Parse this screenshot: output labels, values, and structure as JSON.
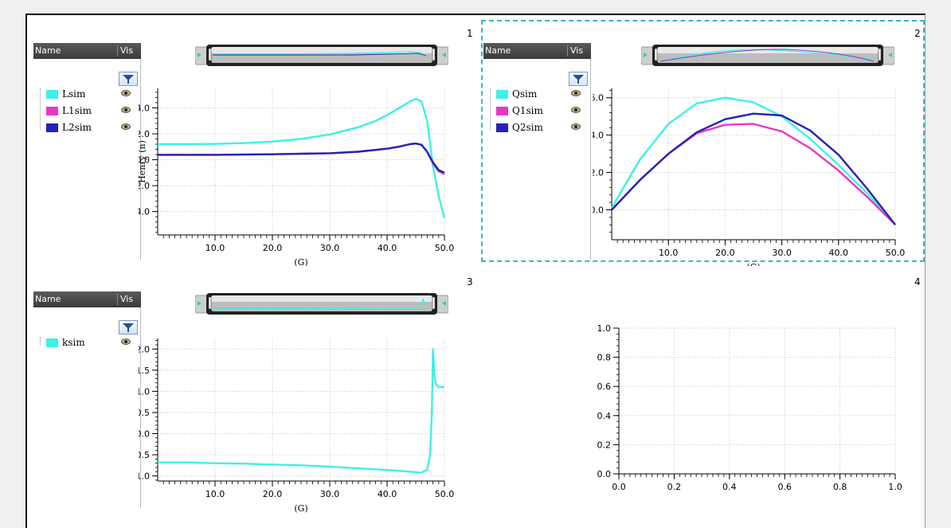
{
  "panels": [
    {
      "number": "1",
      "legend": {
        "header_name": "Name",
        "header_vis": "Vis",
        "items": [
          {
            "label": "Lsim",
            "color": "#3ef0e6"
          },
          {
            "label": "L1sim",
            "color": "#e838c2"
          },
          {
            "label": "L2sim",
            "color": "#2323b8"
          }
        ]
      }
    },
    {
      "number": "2",
      "legend": {
        "header_name": "Name",
        "header_vis": "Vis",
        "items": [
          {
            "label": "Qsim",
            "color": "#3ef0e6"
          },
          {
            "label": "Q1sim",
            "color": "#e838c2"
          },
          {
            "label": "Q2sim",
            "color": "#2323b8"
          }
        ]
      }
    },
    {
      "number": "3",
      "legend": {
        "header_name": "Name",
        "header_vis": "Vis",
        "items": [
          {
            "label": "ksim",
            "color": "#3ef0e6"
          }
        ]
      }
    },
    {
      "number": "4"
    }
  ],
  "chart_data": [
    {
      "type": "line",
      "xlabel": "(G)",
      "ylabel": "Henry (n)",
      "xlim": [
        0,
        50
      ],
      "ylim": [
        -5.8,
        5.5
      ],
      "xticks": [
        10,
        20,
        30,
        40,
        50
      ],
      "xtick_labels": [
        "10.0",
        "20.0",
        "30.0",
        "40.0",
        "50.0"
      ],
      "yticks": [
        -4,
        -2,
        0,
        2,
        4
      ],
      "ytick_labels": [
        "-4.0",
        "-2.0",
        "0.0",
        "2.0",
        "4.0"
      ],
      "grid": true,
      "series": [
        {
          "name": "Lsim",
          "color": "#3ef0e6",
          "x": [
            0,
            5,
            10,
            15,
            20,
            25,
            30,
            35,
            38,
            40,
            42,
            44,
            45,
            46,
            47,
            48,
            49,
            50
          ],
          "y": [
            1.2,
            1.2,
            1.22,
            1.28,
            1.4,
            1.6,
            1.95,
            2.5,
            3.0,
            3.45,
            3.95,
            4.5,
            4.7,
            4.5,
            3.0,
            -0.5,
            -2.8,
            -4.5
          ]
        },
        {
          "name": "L1sim",
          "color": "#e838c2",
          "x": [
            0,
            10,
            20,
            30,
            35,
            40,
            42,
            44,
            45,
            46,
            47,
            48,
            49,
            50
          ],
          "y": [
            0.38,
            0.38,
            0.42,
            0.5,
            0.62,
            0.85,
            1.0,
            1.2,
            1.25,
            1.15,
            0.6,
            -0.3,
            -0.9,
            -1.1
          ]
        },
        {
          "name": "L2sim",
          "color": "#2323b8",
          "x": [
            0,
            10,
            20,
            30,
            35,
            40,
            42,
            44,
            45,
            46,
            47,
            48,
            49,
            50
          ],
          "y": [
            0.38,
            0.38,
            0.42,
            0.5,
            0.62,
            0.85,
            1.0,
            1.2,
            1.25,
            1.15,
            0.6,
            -0.2,
            -0.8,
            -1.0
          ]
        }
      ]
    },
    {
      "type": "line",
      "xlabel": "(G)",
      "ylabel": "",
      "xlim": [
        0,
        50
      ],
      "ylim": [
        -1.6,
        6.5
      ],
      "xticks": [
        10,
        20,
        30,
        40,
        50
      ],
      "xtick_labels": [
        "10.0",
        "20.0",
        "30.0",
        "40.0",
        "50.0"
      ],
      "yticks": [
        0,
        2,
        4,
        6
      ],
      "ytick_labels": [
        "0.0",
        "2.0",
        "4.0",
        "6.0"
      ],
      "grid": true,
      "series": [
        {
          "name": "Qsim",
          "color": "#3ef0e6",
          "x": [
            0,
            5,
            10,
            15,
            20,
            25,
            30,
            35,
            40,
            45,
            50
          ],
          "y": [
            0.1,
            2.7,
            4.6,
            5.7,
            6.0,
            5.75,
            5.0,
            3.8,
            2.4,
            0.9,
            -0.8
          ]
        },
        {
          "name": "Q1sim",
          "color": "#e838c2",
          "x": [
            0,
            5,
            10,
            15,
            20,
            25,
            30,
            35,
            40,
            45,
            50
          ],
          "y": [
            0.0,
            1.6,
            3.0,
            4.1,
            4.55,
            4.6,
            4.2,
            3.3,
            2.1,
            0.7,
            -0.8
          ]
        },
        {
          "name": "Q2sim",
          "color": "#2323b8",
          "x": [
            0,
            5,
            10,
            15,
            20,
            25,
            30,
            35,
            40,
            45,
            50
          ],
          "y": [
            0.0,
            1.6,
            3.0,
            4.15,
            4.85,
            5.15,
            5.05,
            4.25,
            2.95,
            1.15,
            -0.8
          ]
        }
      ]
    },
    {
      "type": "line",
      "xlabel": "(G)",
      "ylabel": "",
      "xlim": [
        0,
        50
      ],
      "ylim": [
        -1.12,
        2.25
      ],
      "xticks": [
        10,
        20,
        30,
        40,
        50
      ],
      "xtick_labels": [
        "10.0",
        "20.0",
        "30.0",
        "40.0",
        "50.0"
      ],
      "yticks": [
        -1.0,
        -0.5,
        0.0,
        0.5,
        1.0,
        1.5,
        2.0
      ],
      "ytick_labels": [
        "-1.0",
        "-0.5",
        "0.0",
        "0.5",
        "1.0",
        "1.5",
        "2.0"
      ],
      "grid": true,
      "series": [
        {
          "name": "ksim",
          "color": "#3ef0e6",
          "x": [
            0,
            5,
            10,
            15,
            20,
            25,
            30,
            35,
            40,
            44,
            46,
            47,
            47.5,
            47.8,
            48,
            48.3,
            48.6,
            49,
            50
          ],
          "y": [
            -0.68,
            -0.68,
            -0.7,
            -0.71,
            -0.73,
            -0.75,
            -0.78,
            -0.82,
            -0.86,
            -0.9,
            -0.92,
            -0.85,
            -0.5,
            0.5,
            2.0,
            1.3,
            1.15,
            1.1,
            1.1
          ]
        }
      ]
    },
    {
      "type": "line",
      "xlabel": "",
      "ylabel": "",
      "xlim": [
        0,
        1
      ],
      "ylim": [
        0,
        1
      ],
      "xticks": [
        0,
        0.2,
        0.4,
        0.6,
        0.8,
        1.0
      ],
      "xtick_labels": [
        "0.0",
        "0.2",
        "0.4",
        "0.6",
        "0.8",
        "1.0"
      ],
      "yticks": [
        0,
        0.2,
        0.4,
        0.6,
        0.8,
        1.0
      ],
      "ytick_labels": [
        "0.0",
        "0.2",
        "0.4",
        "0.6",
        "0.8",
        "1.0"
      ],
      "grid": true,
      "series": []
    }
  ]
}
